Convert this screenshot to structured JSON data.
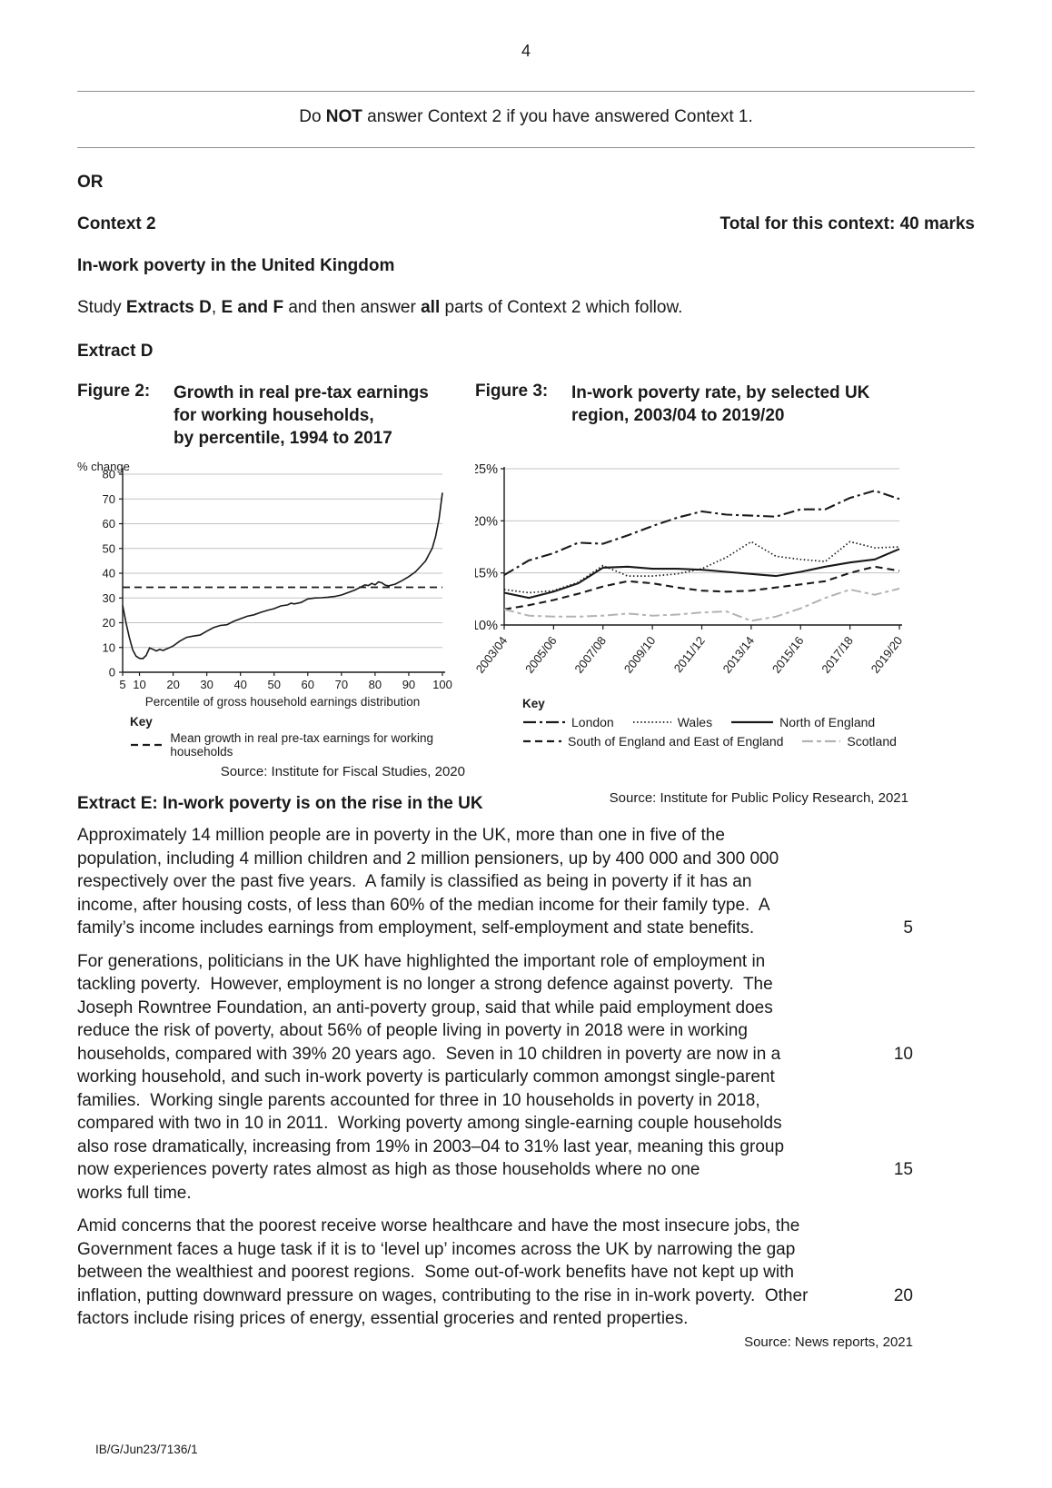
{
  "page": {
    "number": "4",
    "footer_code": "IB/G/Jun23/7136/1"
  },
  "banner": {
    "pre": "Do ",
    "bold": "NOT",
    "post": " answer Context 2 if you have answered Context 1."
  },
  "or_label": "OR",
  "context": {
    "title": "Context 2",
    "total": "Total for this context: 40 marks"
  },
  "topic_title": "In-work poverty in the United Kingdom",
  "study_line": {
    "segments": [
      {
        "text": "Study ",
        "bold": false
      },
      {
        "text": "Extracts D",
        "bold": true
      },
      {
        "text": ", ",
        "bold": false
      },
      {
        "text": "E and F",
        "bold": true
      },
      {
        "text": " and then answer ",
        "bold": false
      },
      {
        "text": "all",
        "bold": true
      },
      {
        "text": " parts of Context 2 which follow.",
        "bold": false
      }
    ]
  },
  "extract_d_heading": "Extract D",
  "figure2": {
    "label": "Figure 2:",
    "title_lines": [
      "Growth in real pre-tax earnings",
      "for working households,",
      "by percentile, 1994 to 2017"
    ],
    "key_label": "Key",
    "key_item_label": "Mean growth in real pre-tax earnings for working households",
    "source": "Source: Institute for Fiscal Studies, 2020"
  },
  "figure3": {
    "label": "Figure 3:",
    "title_lines": [
      "In-work poverty rate, by selected UK",
      "region, 2003/04 to 2019/20"
    ],
    "key_label": "Key",
    "source": "Source: Institute for Public Policy Research, 2021"
  },
  "chart_data": [
    {
      "figure": "Figure 2",
      "type": "line",
      "title": "Growth in real pre-tax earnings for working households, by percentile, 1994 to 2017",
      "ylabel": "% change",
      "xlabel": "Percentile of gross household earnings distribution",
      "xlim": [
        5,
        100
      ],
      "ylim": [
        0,
        80
      ],
      "x_ticks": [
        5,
        10,
        20,
        30,
        40,
        50,
        60,
        70,
        80,
        90,
        100
      ],
      "y_ticks": [
        0,
        10,
        20,
        30,
        40,
        50,
        60,
        70,
        80
      ],
      "grid": true,
      "mean_line_y": 34.3,
      "points": [
        [
          5,
          27
        ],
        [
          6,
          20
        ],
        [
          7,
          14
        ],
        [
          8,
          9
        ],
        [
          9,
          6.5
        ],
        [
          10,
          5.6
        ],
        [
          11,
          5.5
        ],
        [
          12,
          6.8
        ],
        [
          13,
          9.8
        ],
        [
          14,
          9.3
        ],
        [
          15,
          8.6
        ],
        [
          16,
          9.2
        ],
        [
          17,
          8.8
        ],
        [
          18,
          9.4
        ],
        [
          19,
          10
        ],
        [
          20,
          10.6
        ],
        [
          22,
          12.6
        ],
        [
          24,
          14.1
        ],
        [
          26,
          14.6
        ],
        [
          28,
          15
        ],
        [
          30,
          16.6
        ],
        [
          32,
          18
        ],
        [
          34,
          18.9
        ],
        [
          36,
          19.2
        ],
        [
          38,
          20.6
        ],
        [
          40,
          21.6
        ],
        [
          42,
          22.6
        ],
        [
          44,
          23.2
        ],
        [
          46,
          24.2
        ],
        [
          48,
          25
        ],
        [
          50,
          25.7
        ],
        [
          52,
          26.8
        ],
        [
          54,
          27.2
        ],
        [
          55,
          27.9
        ],
        [
          56,
          27.6
        ],
        [
          58,
          28.2
        ],
        [
          60,
          29.6
        ],
        [
          62,
          30
        ],
        [
          64,
          30.1
        ],
        [
          66,
          30.3
        ],
        [
          68,
          30.6
        ],
        [
          70,
          31.2
        ],
        [
          72,
          32.2
        ],
        [
          74,
          33.2
        ],
        [
          76,
          34.6
        ],
        [
          77,
          35.3
        ],
        [
          78,
          35
        ],
        [
          79,
          35.9
        ],
        [
          80,
          35.3
        ],
        [
          81,
          36.5
        ],
        [
          82,
          36.1
        ],
        [
          83,
          35.2
        ],
        [
          84,
          34.9
        ],
        [
          86,
          35.6
        ],
        [
          88,
          37
        ],
        [
          90,
          38.6
        ],
        [
          92,
          40.6
        ],
        [
          94,
          43.5
        ],
        [
          95,
          45
        ],
        [
          96,
          47.6
        ],
        [
          97,
          50.2
        ],
        [
          98,
          55
        ],
        [
          99,
          62
        ],
        [
          100,
          72.5
        ]
      ],
      "series_labels": [
        "Growth in real pre-tax earnings",
        "Mean growth in real pre-tax earnings for working households"
      ]
    },
    {
      "figure": "Figure 3",
      "type": "line",
      "title": "In-work poverty rate, by selected UK region, 2003/04 to 2019/20",
      "n_points": 17,
      "x_tick_labels": [
        "2003/04",
        "2005/06",
        "2007/08",
        "2009/10",
        "2011/12",
        "2013/14",
        "2015/16",
        "2017/18",
        "2019/20"
      ],
      "ylim": [
        10,
        25
      ],
      "y_ticks": [
        10,
        15,
        20,
        25
      ],
      "y_tick_labels": [
        "10%",
        "15%",
        "20%",
        "25%"
      ],
      "grid": true,
      "legend_position": "below",
      "series": [
        {
          "name": "London",
          "style": "dashdot",
          "color": "#1a1a1a",
          "values": [
            14.8,
            16.2,
            16.9,
            17.9,
            17.8,
            18.6,
            19.5,
            20.3,
            20.9,
            20.6,
            20.5,
            20.4,
            21.1,
            21.1,
            22.2,
            22.9,
            22.1
          ]
        },
        {
          "name": "Wales",
          "style": "dotted",
          "color": "#1a1a1a",
          "values": [
            13.4,
            13.1,
            13.3,
            14.1,
            15.7,
            14.7,
            14.7,
            14.9,
            15.4,
            16.5,
            18.0,
            16.6,
            16.3,
            16.1,
            18.0,
            17.4,
            17.5
          ]
        },
        {
          "name": "North of England",
          "style": "solid",
          "color": "#1a1a1a",
          "values": [
            13.1,
            12.6,
            13.2,
            14.0,
            15.5,
            15.6,
            15.4,
            15.4,
            15.3,
            15.1,
            14.9,
            14.7,
            15.1,
            15.6,
            16.0,
            16.3,
            17.3
          ]
        },
        {
          "name": "South of England and East of England",
          "style": "dashed",
          "color": "#1a1a1a",
          "values": [
            11.5,
            11.9,
            12.4,
            13.0,
            13.7,
            14.2,
            14.0,
            13.6,
            13.3,
            13.2,
            13.3,
            13.6,
            13.9,
            14.2,
            15.0,
            15.6,
            15.2
          ]
        },
        {
          "name": "Scotland",
          "style": "longdash",
          "color": "#b3b3b3",
          "values": [
            11.5,
            10.9,
            10.8,
            10.8,
            10.9,
            11.1,
            10.9,
            11.0,
            11.2,
            11.3,
            10.4,
            10.8,
            11.6,
            12.6,
            13.4,
            12.9,
            13.5
          ]
        }
      ]
    }
  ],
  "extract_e": {
    "heading": "Extract E: In-work poverty is on the rise in the UK",
    "paragraphs": [
      {
        "lines": [
          "Approximately 14 million people are in poverty in the UK, more than one in five of the",
          "population, including 4 million children and 2 million pensioners, up by 400 000 and 300 000",
          "respectively over the past five years.  A family is classified as being in poverty if it has an",
          "income, after housing costs, of less than 60% of the median income for their family type.  A",
          "family’s income includes earnings from employment, self-employment and state benefits."
        ],
        "nums": {
          "4": "5"
        }
      },
      {
        "lines": [
          "For generations, politicians in the UK have highlighted the important role of employment in",
          "tackling poverty.  However, employment is no longer a strong defence against poverty.  The",
          "Joseph Rowntree Foundation, an anti-poverty group, said that while paid employment does",
          "reduce the risk of poverty, about 56% of people living in poverty in 2018 were in working",
          "households, compared with 39% 20 years ago.  Seven in 10 children in poverty are now in a",
          "working household, and such in-work poverty is particularly common amongst single-parent",
          "families.  Working single parents accounted for three in 10 households in poverty in 2018,",
          "compared with two in 10 in 2011.  Working poverty among single-earning couple households",
          "also rose dramatically, increasing from 19% in 2003–04 to 31% last year, meaning this group",
          "now experiences poverty rates almost as high as those households where no one",
          "works full time."
        ],
        "nums": {
          "4": "10",
          "9": "15"
        }
      },
      {
        "lines": [
          "Amid concerns that the poorest receive worse healthcare and have the most insecure jobs, the",
          "Government faces a huge task if it is to ‘level up’ incomes across the UK by narrowing the gap",
          "between the wealthiest and poorest regions.  Some out-of-work benefits have not kept up with",
          "inflation, putting downward pressure on wages, contributing to the rise in in-work poverty.  Other",
          "factors include rising prices of energy, essential groceries and rented properties."
        ],
        "nums": {
          "3": "20"
        }
      }
    ],
    "source": "Source: News reports, 2021"
  }
}
